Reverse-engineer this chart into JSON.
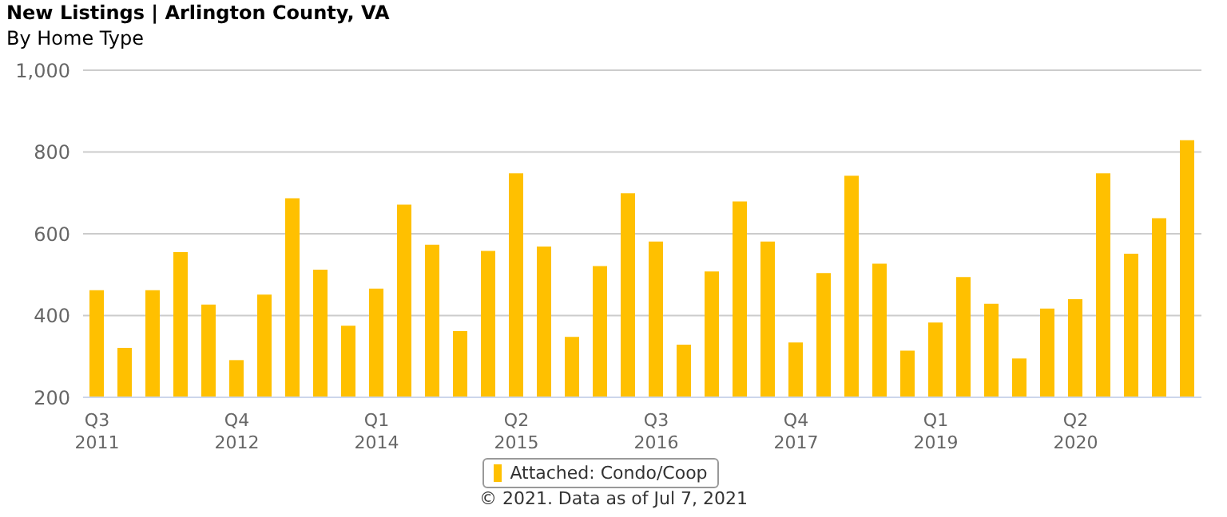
{
  "chart_data": {
    "type": "bar",
    "title": "New Listings | Arlington County, VA",
    "subtitle": "By Home Type",
    "categories": [
      "Q3 2011",
      null,
      null,
      null,
      null,
      "Q4 2012",
      null,
      null,
      null,
      null,
      "Q1 2014",
      null,
      null,
      null,
      null,
      "Q2 2015",
      null,
      null,
      null,
      null,
      "Q3 2016",
      null,
      null,
      null,
      null,
      "Q4 2017",
      null,
      null,
      null,
      null,
      "Q1 2019",
      null,
      null,
      null,
      null,
      "Q2 2020",
      null,
      null,
      null,
      null
    ],
    "series": [
      {
        "name": "Attached: Condo/Coop",
        "color": "#ffc000",
        "values": [
          462,
          321,
          462,
          555,
          427,
          291,
          451,
          687,
          512,
          375,
          466,
          671,
          573,
          362,
          558,
          748,
          569,
          348,
          521,
          699,
          581,
          329,
          508,
          679,
          581,
          334,
          504,
          742,
          527,
          314,
          383,
          494,
          429,
          295,
          417,
          440,
          748,
          551,
          638,
          829
        ]
      }
    ],
    "ylim": [
      200,
      1000
    ],
    "yticks": [
      200,
      400,
      600,
      800,
      {
        "value": 1000,
        "label": "1,000"
      }
    ],
    "grid": "y",
    "legend": "bottom",
    "annotations": [
      "© 2021. Data as of Jul 7, 2021"
    ]
  }
}
